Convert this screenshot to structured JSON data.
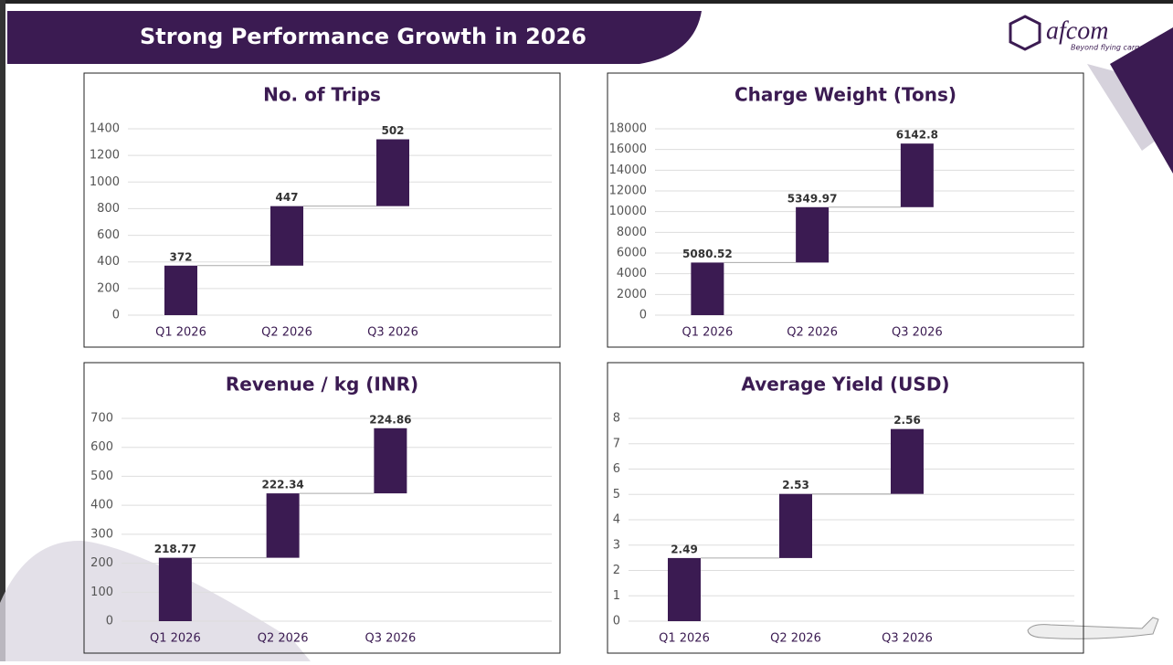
{
  "header": {
    "title": "Strong Performance Growth in 2026"
  },
  "logo": {
    "name": "afcom",
    "tagline": "Beyond flying cargo"
  },
  "chart_data": [
    {
      "type": "waterfall",
      "title": "No. of Trips",
      "categories": [
        "Q1 2026",
        "Q2 2026",
        "Q3 2026"
      ],
      "values": [
        372,
        447,
        502
      ],
      "color": "#3b1b52",
      "ylim": [
        0,
        1400
      ],
      "yticks": [
        0,
        200,
        400,
        600,
        800,
        1000,
        1200,
        1400
      ],
      "grid": true
    },
    {
      "type": "waterfall",
      "title": "Charge Weight (Tons)",
      "categories": [
        "Q1 2026",
        "Q2 2026",
        "Q3 2026"
      ],
      "values": [
        5080.52,
        5349.97,
        6142.8
      ],
      "color": "#3b1b52",
      "ylim": [
        0,
        18000
      ],
      "yticks": [
        0,
        2000,
        4000,
        6000,
        8000,
        10000,
        12000,
        14000,
        16000,
        18000
      ],
      "grid": true
    },
    {
      "type": "waterfall",
      "title": "Revenue / kg (INR)",
      "categories": [
        "Q1 2026",
        "Q2 2026",
        "Q3 2026"
      ],
      "values": [
        218.77,
        222.34,
        224.86
      ],
      "color": "#3b1b52",
      "ylim": [
        0,
        700
      ],
      "yticks": [
        0,
        100,
        200,
        300,
        400,
        500,
        600,
        700
      ],
      "grid": true
    },
    {
      "type": "waterfall",
      "title": "Average Yield (USD)",
      "categories": [
        "Q1 2026",
        "Q2 2026",
        "Q3 2026"
      ],
      "values": [
        2.49,
        2.53,
        2.56
      ],
      "color": "#3b1b52",
      "ylim": [
        0,
        8
      ],
      "yticks": [
        0,
        1,
        2,
        3,
        4,
        5,
        6,
        7,
        8
      ],
      "grid": true
    }
  ]
}
